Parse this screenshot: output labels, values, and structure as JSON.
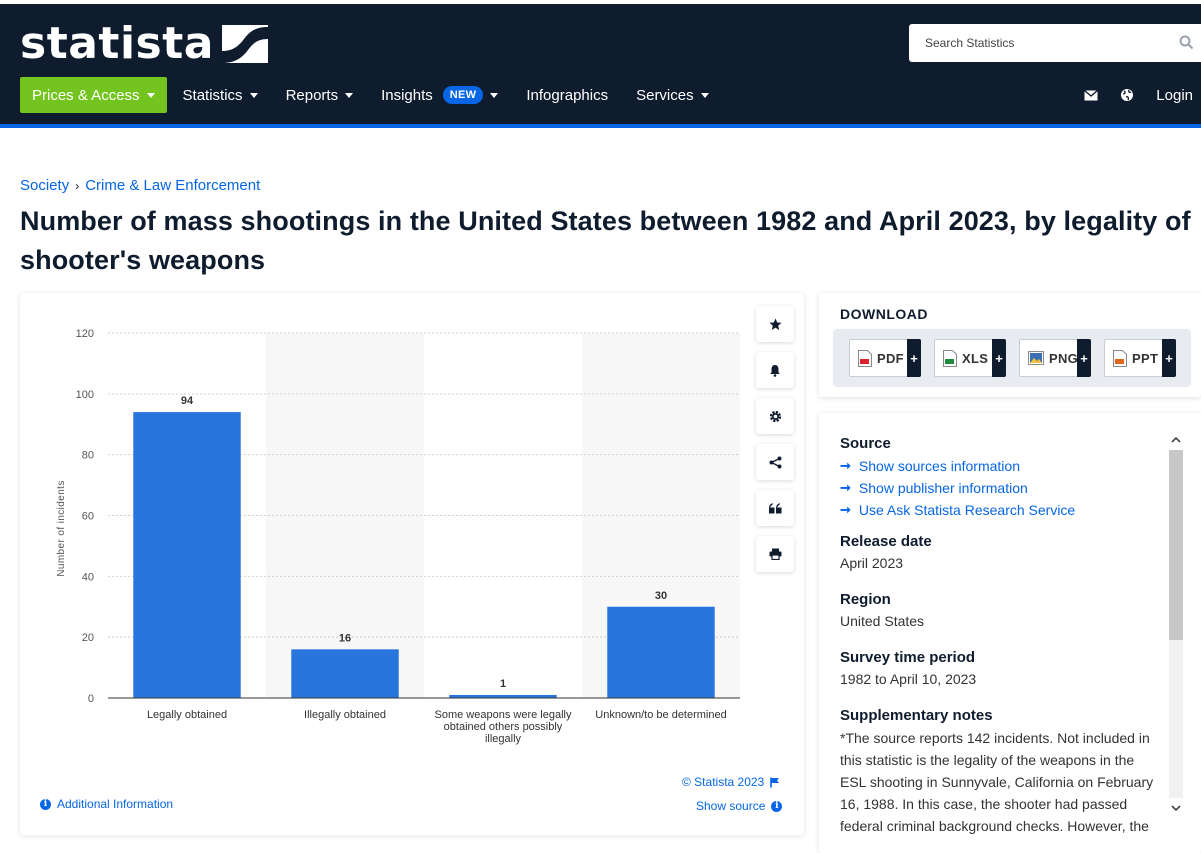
{
  "brand": {
    "name": "statista",
    "accent": "#0666e5",
    "nav_bg": "#0f1c2e",
    "green": "#74c41f"
  },
  "search": {
    "placeholder": "Search Statistics"
  },
  "nav": {
    "items": [
      {
        "label": "Prices & Access",
        "dropdown": true
      },
      {
        "label": "Statistics",
        "dropdown": true
      },
      {
        "label": "Reports",
        "dropdown": true
      },
      {
        "label": "Insights",
        "badge": "NEW",
        "dropdown": true
      },
      {
        "label": "Infographics",
        "dropdown": false
      },
      {
        "label": "Services",
        "dropdown": true
      }
    ],
    "login": "Login"
  },
  "breadcrumb": {
    "items": [
      "Society",
      "Crime & Law Enforcement"
    ],
    "separator": "›"
  },
  "page": {
    "title": "Number of mass shootings in the United States between 1982 and April 2023, by legality of shooter's weapons"
  },
  "chart_data": {
    "type": "bar",
    "title": "",
    "xlabel": "",
    "ylabel": "Number of incidents",
    "ylim": [
      0,
      120
    ],
    "yticks": [
      0,
      20,
      40,
      60,
      80,
      100,
      120
    ],
    "categories": [
      "Legally obtained",
      "Illegally obtained",
      "Some weapons were legally obtained others possibly illegally",
      "Unknown/to be determined"
    ],
    "category_lines": [
      [
        "Legally obtained"
      ],
      [
        "Illegally obtained"
      ],
      [
        "Some weapons were legally",
        "obtained others possibly",
        "illegally"
      ],
      [
        "Unknown/to be determined"
      ]
    ],
    "values": [
      94,
      16,
      1,
      30
    ],
    "bar_color": "#2876dd",
    "grid": true
  },
  "chart_footer": {
    "copyright": "© Statista 2023",
    "show_source": "Show source",
    "additional_info": "Additional Information"
  },
  "tools": [
    "star-icon",
    "bell-icon",
    "gear-icon",
    "share-icon",
    "quote-icon",
    "print-icon"
  ],
  "download": {
    "title": "DOWNLOAD",
    "formats": [
      {
        "label": "PDF",
        "color": "#d8232a"
      },
      {
        "label": "XLS",
        "color": "#1d8a3c"
      },
      {
        "label": "PNG",
        "color": "#3a6fb5"
      },
      {
        "label": "PPT",
        "color": "#e0661b"
      }
    ],
    "plus": "+"
  },
  "info": {
    "source_heading": "Source",
    "source_links": [
      "Show sources information",
      "Show publisher information",
      "Use Ask Statista Research Service"
    ],
    "release_heading": "Release date",
    "release_value": "April 2023",
    "region_heading": "Region",
    "region_value": "United States",
    "period_heading": "Survey time period",
    "period_value": "1982 to April 10, 2023",
    "notes_heading": "Supplementary notes",
    "notes_text": "*The source reports 142 incidents. Not included in this statistic is the legality of the weapons in the ESL shooting in Sunnyvale, California on February 16, 1988. In this case, the shooter had passed federal criminal background checks. However, the"
  }
}
